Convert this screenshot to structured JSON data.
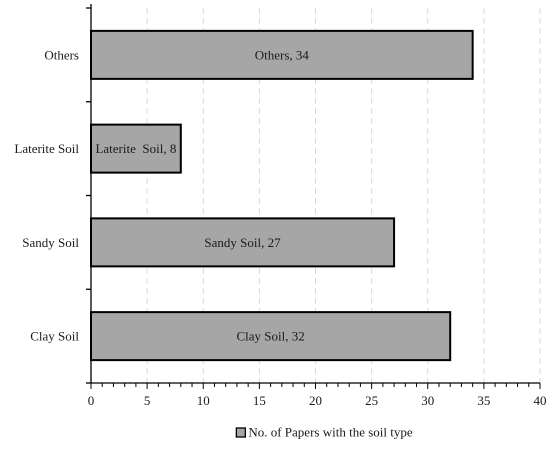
{
  "chart_data": {
    "type": "bar",
    "orientation": "horizontal",
    "categories": [
      "Others",
      "Laterite Soil",
      "Sandy Soil",
      "Clay Soil"
    ],
    "series": [
      {
        "name": "No. of Papers with the soil type",
        "values": [
          34,
          8,
          27,
          32
        ],
        "color": "#a6a6a6"
      }
    ],
    "data_labels": [
      "Others, 34",
      "Laterite  Soil, 8",
      "Sandy Soil, 27",
      "Clay Soil, 32"
    ],
    "xlim": [
      0,
      40
    ],
    "xticks": [
      0,
      5,
      10,
      15,
      20,
      25,
      30,
      35,
      40
    ],
    "minor_tick_step": 1,
    "grid": "vertical dashed",
    "legend": "bottom",
    "title": "",
    "xlabel": "",
    "ylabel": "",
    "colors": {
      "bar_fill": "#a6a6a6",
      "bar_stroke": "#000000",
      "grid": "#d9d9d9",
      "axis": "#000000"
    }
  }
}
